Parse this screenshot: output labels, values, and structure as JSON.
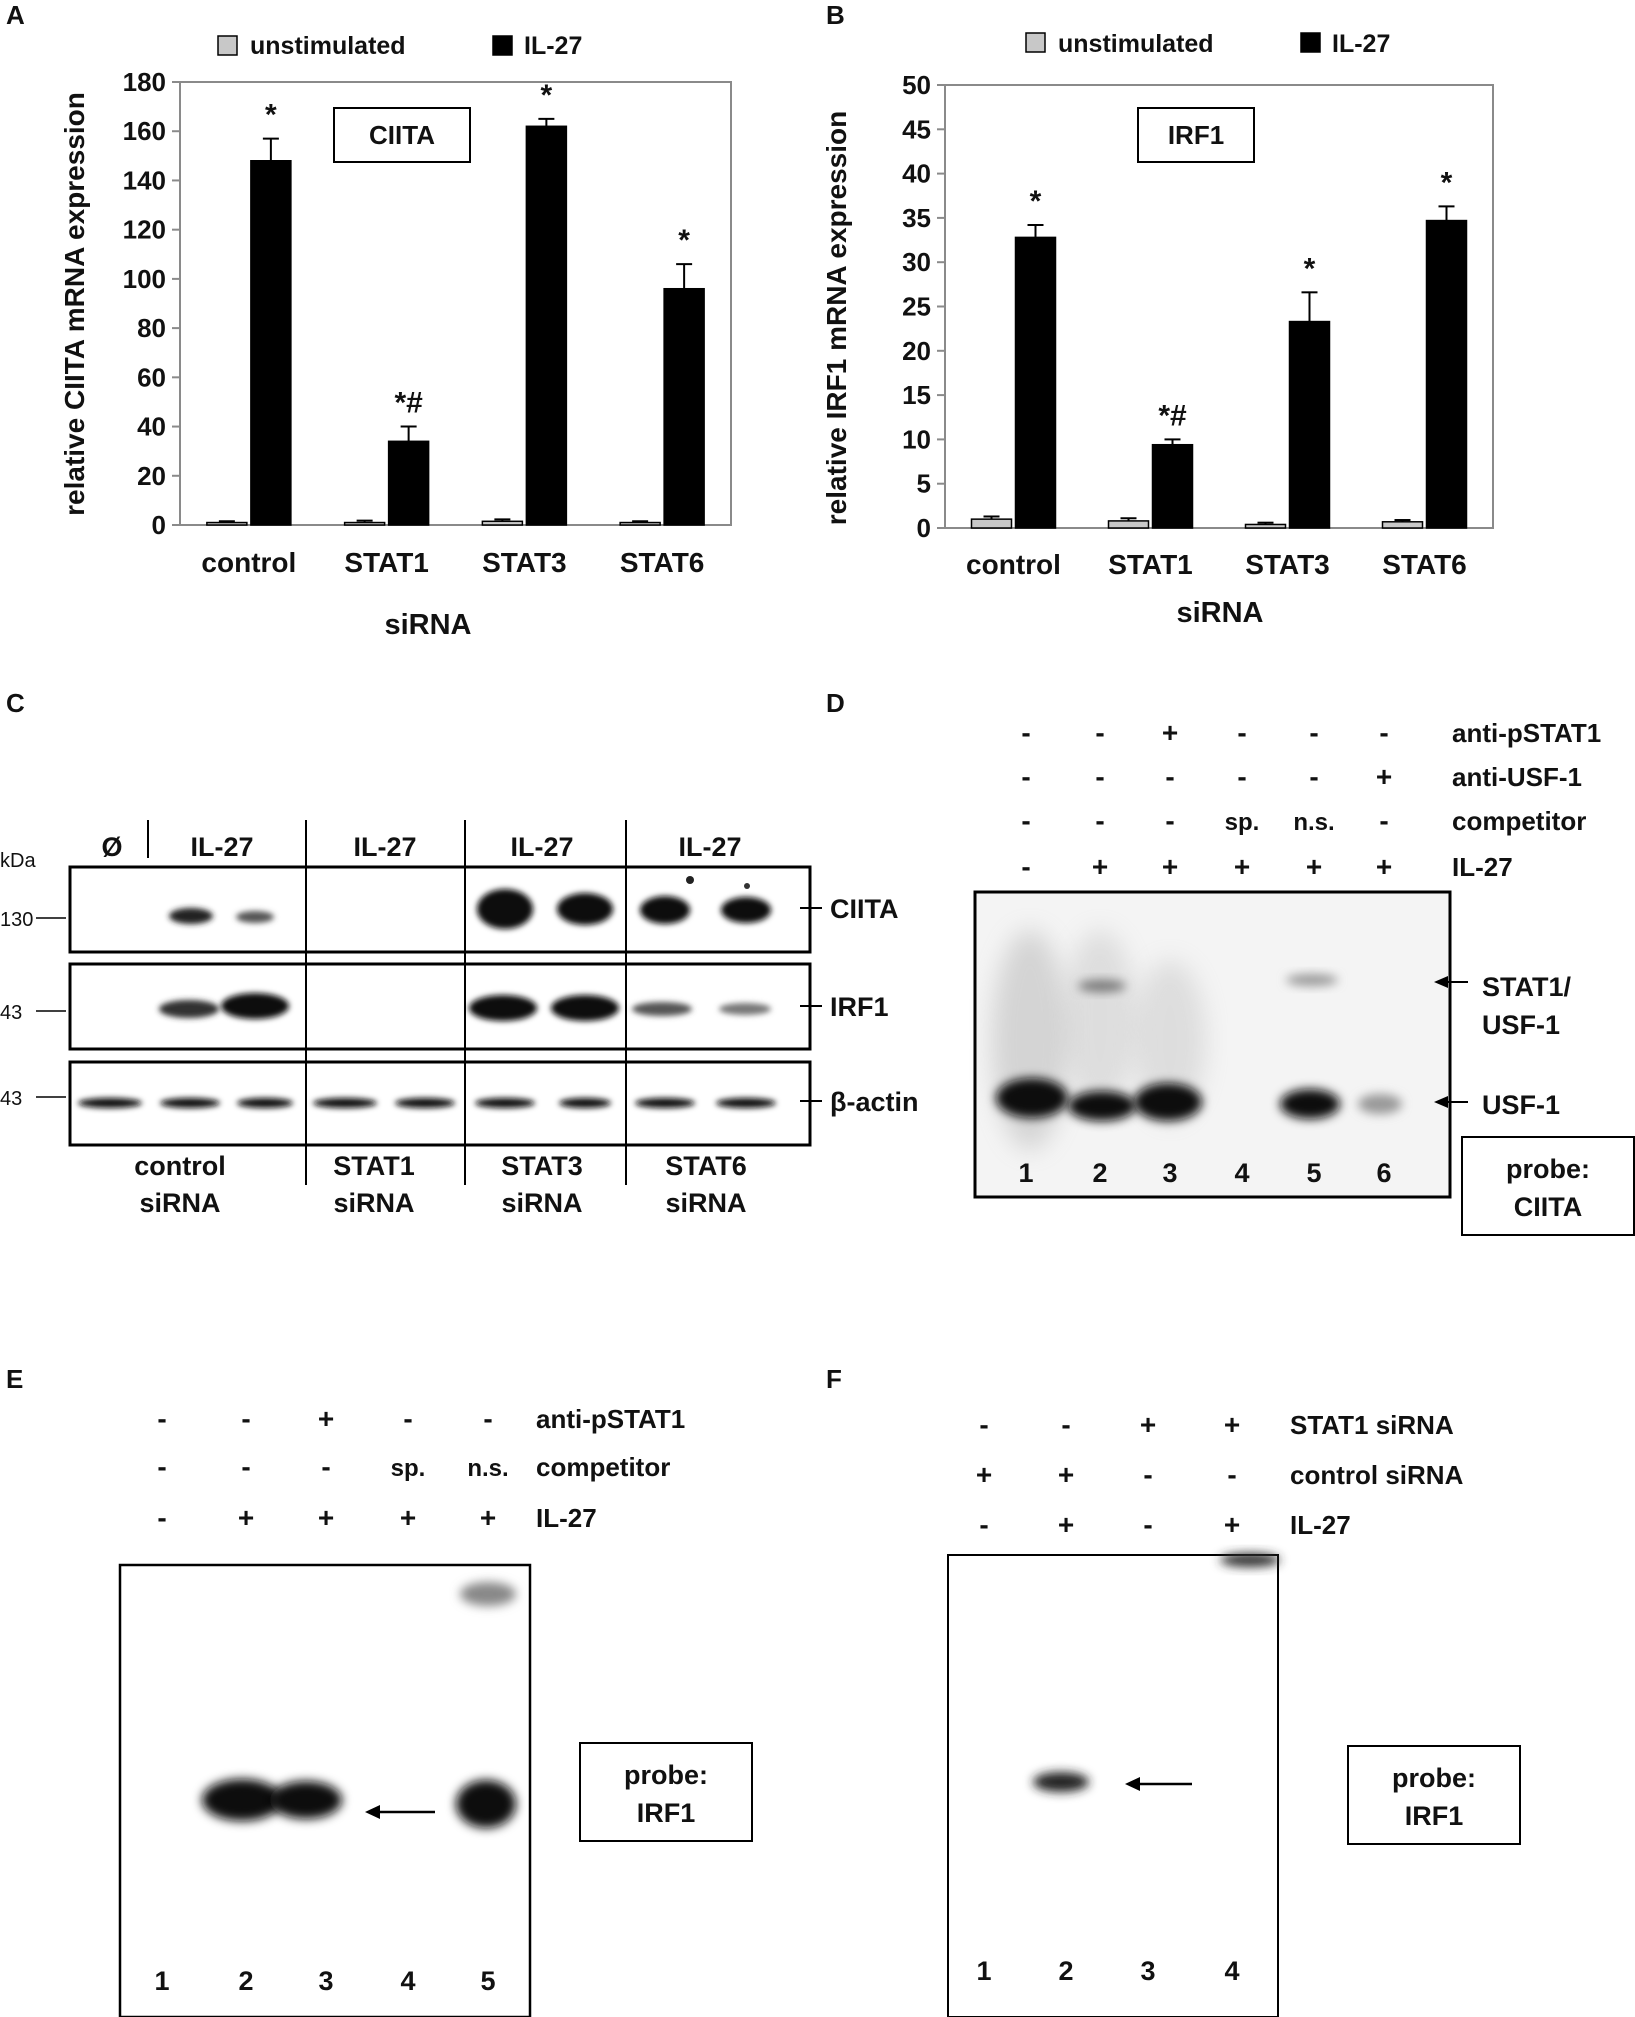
{
  "chart_data": [
    {
      "panel": "A",
      "type": "bar",
      "box_label": "CIITA",
      "ylabel": "relative CIITA mRNA expression",
      "xlabel": "siRNA",
      "categories": [
        "control",
        "STAT1",
        "STAT3",
        "STAT6"
      ],
      "ylim": [
        0,
        180
      ],
      "yticks": [
        0,
        20,
        40,
        60,
        80,
        100,
        120,
        140,
        160,
        180
      ],
      "series": [
        {
          "name": "unstimulated",
          "color": "#c8c8c8",
          "values": [
            1,
            1,
            1.5,
            1
          ],
          "errors": [
            0.5,
            0.8,
            0.8,
            0.5
          ]
        },
        {
          "name": "IL-27",
          "color": "#000000",
          "values": [
            148,
            34,
            162,
            96
          ],
          "errors": [
            9,
            6,
            3,
            10
          ]
        }
      ],
      "annotations": [
        "*",
        "*#",
        "*",
        "*"
      ]
    },
    {
      "panel": "B",
      "type": "bar",
      "box_label": "IRF1",
      "ylabel": "relative IRF1 mRNA expression",
      "xlabel": "siRNA",
      "categories": [
        "control",
        "STAT1",
        "STAT3",
        "STAT6"
      ],
      "ylim": [
        0,
        50
      ],
      "yticks": [
        0,
        5,
        10,
        15,
        20,
        25,
        30,
        35,
        40,
        45,
        50
      ],
      "series": [
        {
          "name": "unstimulated",
          "color": "#c8c8c8",
          "values": [
            1,
            0.8,
            0.4,
            0.7
          ],
          "errors": [
            0.3,
            0.3,
            0.2,
            0.2
          ]
        },
        {
          "name": "IL-27",
          "color": "#000000",
          "values": [
            32.8,
            9.4,
            23.3,
            34.7
          ],
          "errors": [
            1.4,
            0.6,
            3.3,
            1.6
          ]
        }
      ],
      "annotations": [
        "*",
        "*#",
        "*",
        "*"
      ]
    }
  ],
  "panels": {
    "A": "A",
    "B": "B",
    "C": "C",
    "D": "D",
    "E": "E",
    "F": "F"
  },
  "blot_c": {
    "kda": "kDa",
    "markers": [
      "130",
      "43",
      "43"
    ],
    "lane_headers": [
      "Ø",
      "IL-27",
      "IL-27",
      "IL-27",
      "IL-27"
    ],
    "proteins": [
      "CIITA",
      "IRF1",
      "β-actin"
    ],
    "groups": [
      {
        "line1": "control",
        "line2": "siRNA"
      },
      {
        "line1": "STAT1",
        "line2": "siRNA"
      },
      {
        "line1": "STAT3",
        "line2": "siRNA"
      },
      {
        "line1": "STAT6",
        "line2": "siRNA"
      }
    ]
  },
  "gel_d": {
    "rows": [
      {
        "label": "anti-pSTAT1",
        "cells": [
          "-",
          "-",
          "+",
          "-",
          "-",
          "-"
        ]
      },
      {
        "label": "anti-USF-1",
        "cells": [
          "-",
          "-",
          "-",
          "-",
          "-",
          "+"
        ]
      },
      {
        "label": "competitor",
        "cells": [
          "-",
          "-",
          "-",
          "sp.",
          "n.s.",
          "-"
        ]
      },
      {
        "label": "IL-27",
        "cells": [
          "-",
          "+",
          "+",
          "+",
          "+",
          "+"
        ]
      }
    ],
    "lanes": [
      "1",
      "2",
      "3",
      "4",
      "5",
      "6"
    ],
    "arrow1_l1": "STAT1/",
    "arrow1_l2": "USF-1",
    "arrow2": "USF-1",
    "probe_l1": "probe:",
    "probe_l2": "CIITA"
  },
  "gel_e": {
    "rows": [
      {
        "label": "anti-pSTAT1",
        "cells": [
          "-",
          "-",
          "+",
          "-",
          "-"
        ]
      },
      {
        "label": "competitor",
        "cells": [
          "-",
          "-",
          "-",
          "sp.",
          "n.s."
        ]
      },
      {
        "label": "IL-27",
        "cells": [
          "-",
          "+",
          "+",
          "+",
          "+"
        ]
      }
    ],
    "lanes": [
      "1",
      "2",
      "3",
      "4",
      "5"
    ],
    "probe_l1": "probe:",
    "probe_l2": "IRF1"
  },
  "gel_f": {
    "rows": [
      {
        "label": "STAT1 siRNA",
        "cells": [
          "-",
          "-",
          "+",
          "+"
        ]
      },
      {
        "label": "control siRNA",
        "cells": [
          "+",
          "+",
          "-",
          "-"
        ]
      },
      {
        "label": "IL-27",
        "cells": [
          "-",
          "+",
          "-",
          "+"
        ]
      }
    ],
    "lanes": [
      "1",
      "2",
      "3",
      "4"
    ],
    "probe_l1": "probe:",
    "probe_l2": "IRF1"
  },
  "colors": {
    "unstimulated": "#c8c8c8",
    "il27": "#000000",
    "band": "#111111"
  }
}
